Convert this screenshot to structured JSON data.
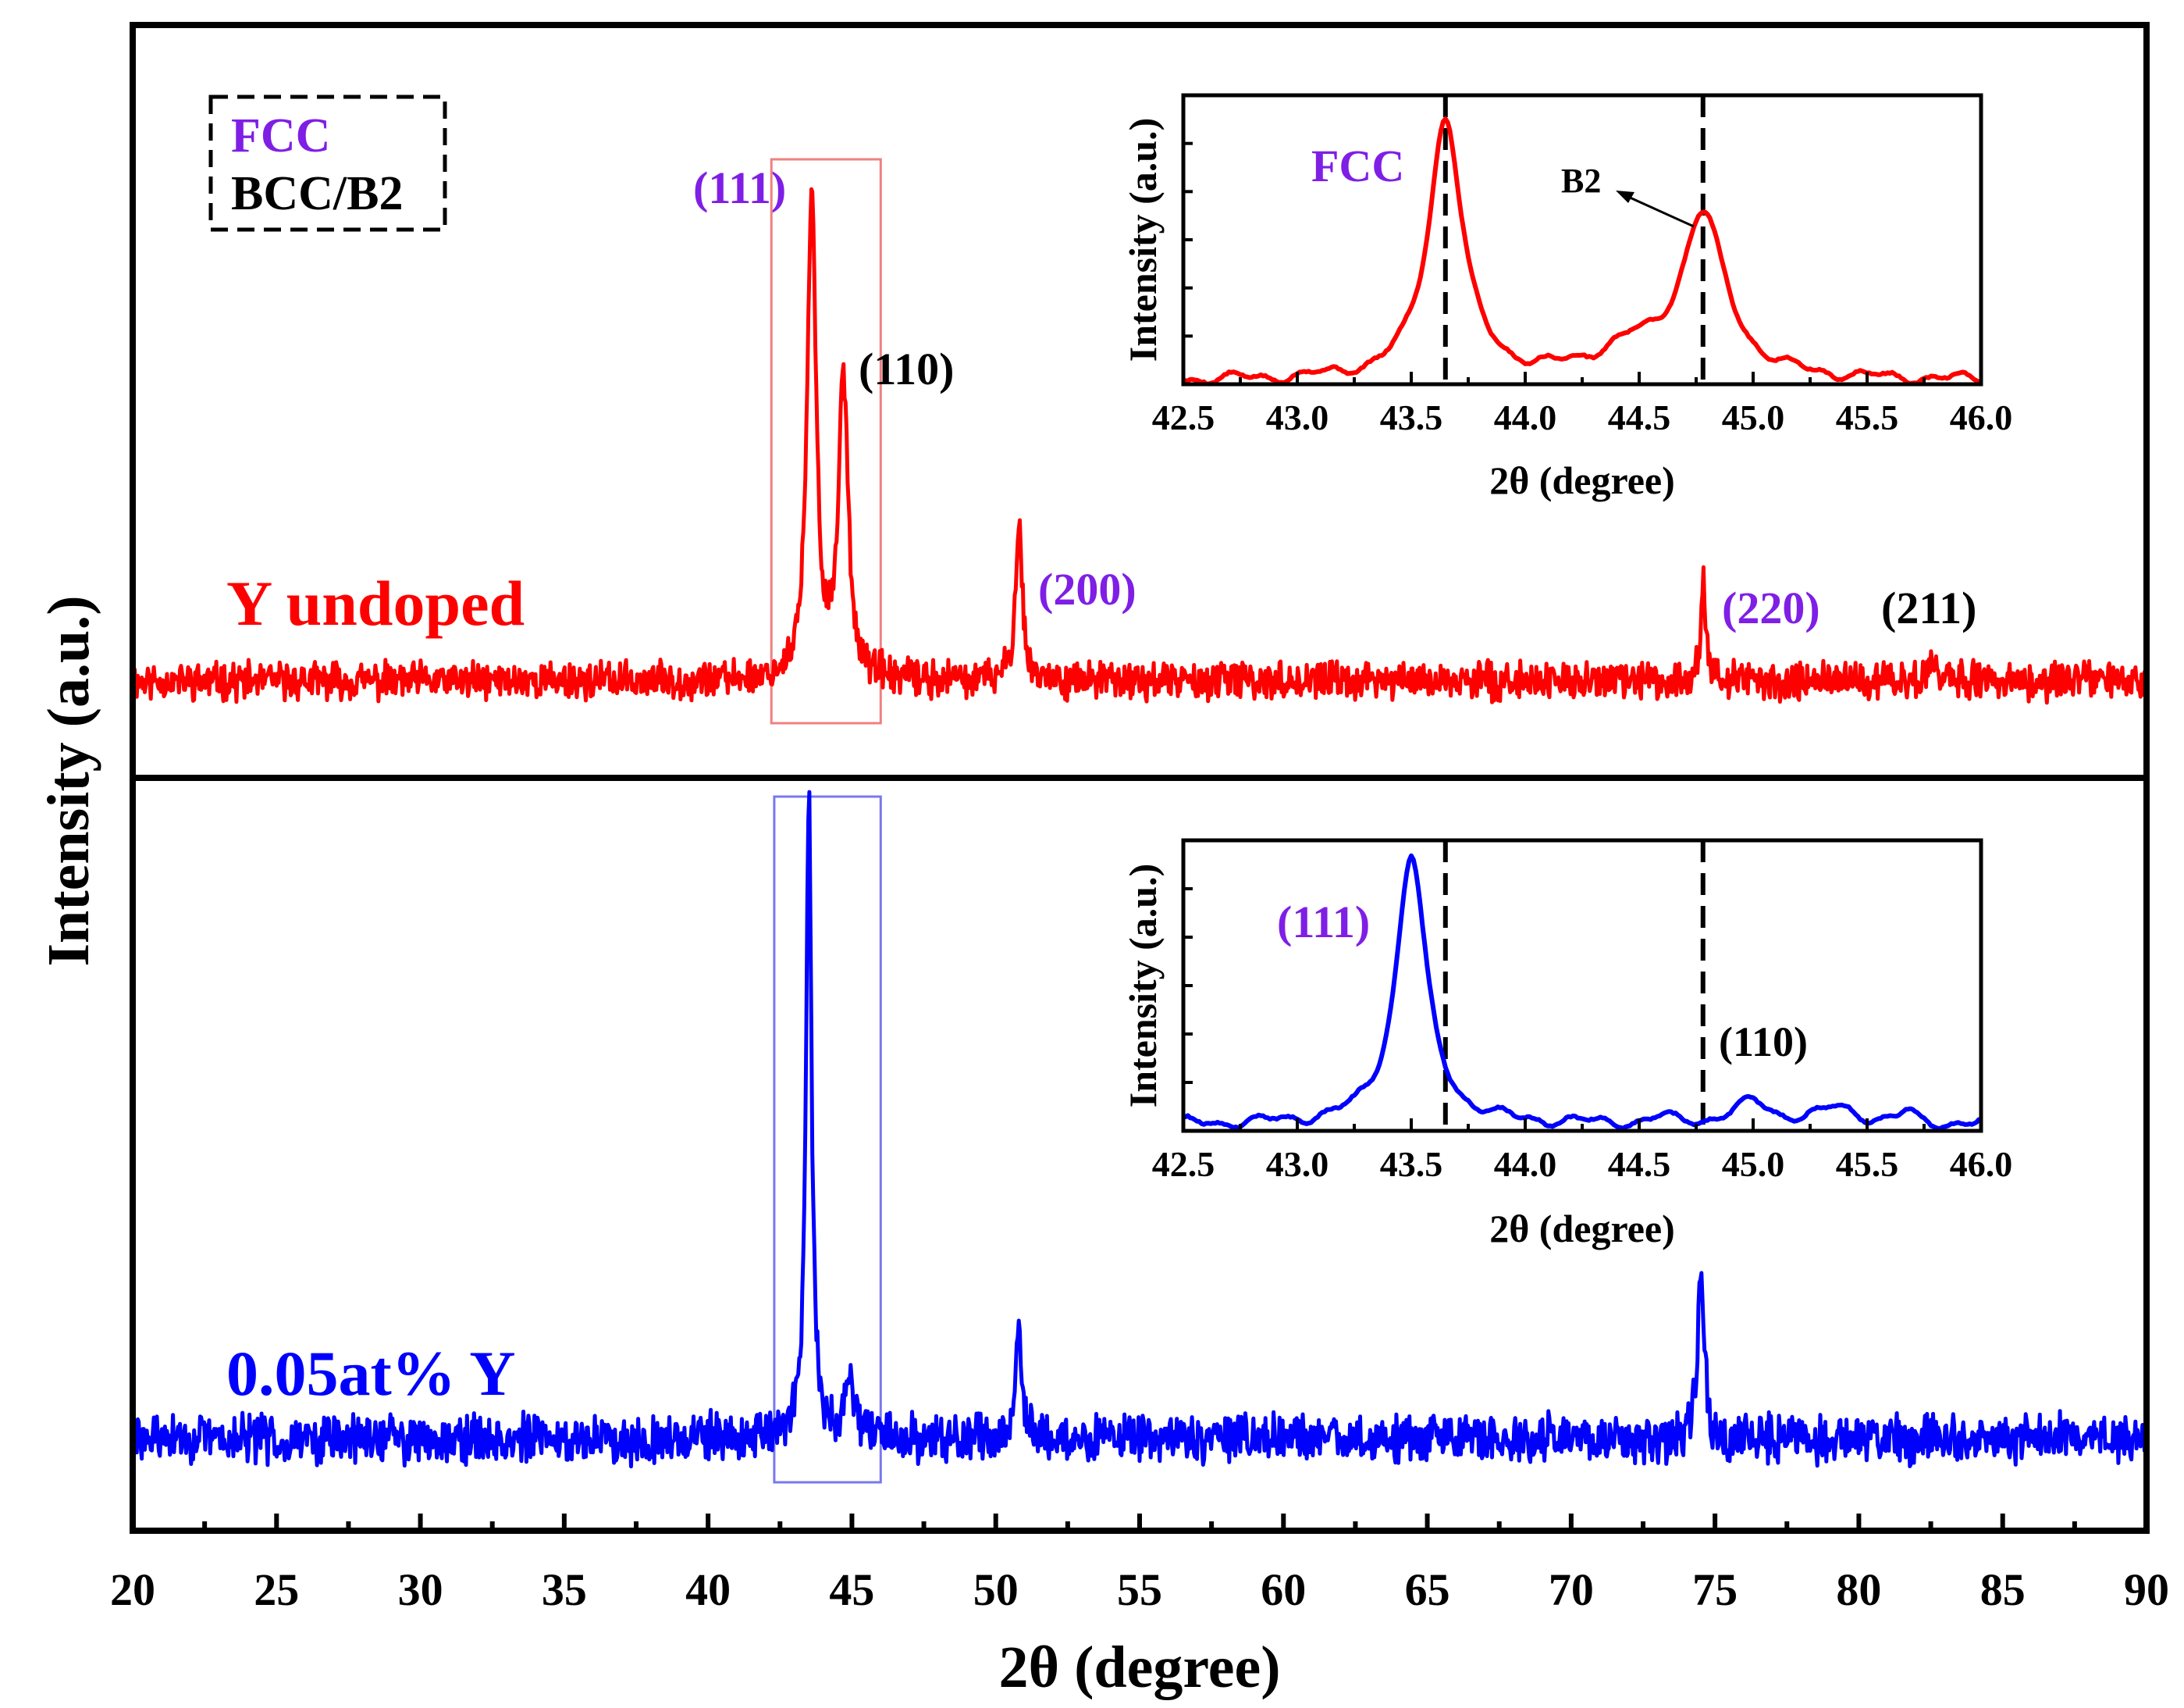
{
  "colors": {
    "red": "#ff0000",
    "blue": "#0000ff",
    "purple": "#7f1fe6",
    "black": "#000000",
    "box_red": "#f08080",
    "box_blue": "#7878f0"
  },
  "chart_data": [
    {
      "id": "main",
      "type": "line",
      "xlabel": "2θ (degree)",
      "ylabel": "Intensity (a.u.)",
      "xlim": [
        20,
        90
      ],
      "x_ticks": [
        20,
        25,
        30,
        35,
        40,
        45,
        50,
        55,
        60,
        65,
        70,
        75,
        80,
        85,
        90
      ],
      "legend": {
        "position": "top-left",
        "entries": [
          {
            "label": "FCC",
            "color": "#7f1fe6"
          },
          {
            "label": "BCC/B2",
            "color": "#000000"
          }
        ]
      },
      "panels": [
        {
          "name": "Y undoped",
          "color": "#ff0000",
          "baseline": 0.12,
          "peaks": [
            {
              "x": 43.6,
              "height": 1.0,
              "width": 0.18
            },
            {
              "x": 44.7,
              "height": 0.62,
              "width": 0.2
            },
            {
              "x": 50.8,
              "height": 0.33,
              "width": 0.14
            },
            {
              "x": 74.6,
              "height": 0.2,
              "width": 0.12
            },
            {
              "x": 82.6,
              "height": 0.06,
              "width": 0.15
            }
          ],
          "peak_labels": [
            {
              "text": "(111)",
              "x": 41.4,
              "color": "#7f1fe6"
            },
            {
              "text": "(110)",
              "x": 47.0,
              "color": "#000000"
            },
            {
              "text": "(200)",
              "x": 53.4,
              "color": "#7f1fe6"
            },
            {
              "text": "(220)",
              "x": 77.2,
              "color": "#7f1fe6"
            },
            {
              "text": "(211)",
              "x": 84.5,
              "color": "#000000"
            }
          ],
          "highlight_box": [
            42.2,
            46.0
          ]
        },
        {
          "name": "0.05at% Y",
          "color": "#0000ff",
          "baseline": 0.07,
          "peaks": [
            {
              "x": 43.5,
              "height": 1.0,
              "width": 0.12
            },
            {
              "x": 44.9,
              "height": 0.09,
              "width": 0.2
            },
            {
              "x": 50.8,
              "height": 0.18,
              "width": 0.12
            },
            {
              "x": 74.5,
              "height": 0.28,
              "width": 0.13
            }
          ],
          "peak_labels": [],
          "highlight_box": [
            42.3,
            46.0
          ]
        }
      ]
    },
    {
      "id": "inset-top",
      "type": "line",
      "xlabel": "2θ (degree)",
      "ylabel": "Intensity (a.u.)",
      "xlim": [
        42.5,
        46.0
      ],
      "x_ticks": [
        42.5,
        43.0,
        43.5,
        44.0,
        44.5,
        45.0,
        45.5,
        46.0
      ],
      "color": "#ff0000",
      "reference_lines": [
        43.65,
        44.78
      ],
      "peaks": [
        {
          "x": 43.65,
          "height": 1.0,
          "width": 0.09
        },
        {
          "x": 44.78,
          "height": 0.62,
          "width": 0.12
        },
        {
          "x": 44.45,
          "height": 0.1,
          "width": 0.18
        }
      ],
      "labels": [
        {
          "text": "FCC",
          "color": "#7f1fe6"
        },
        {
          "text": "B2",
          "color": "#000000"
        }
      ]
    },
    {
      "id": "inset-bottom",
      "type": "line",
      "xlabel": "2θ (degree)",
      "ylabel": "Intensity (a.u.)",
      "xlim": [
        42.5,
        46.0
      ],
      "x_ticks": [
        42.5,
        43.0,
        43.5,
        44.0,
        44.5,
        45.0,
        45.5,
        46.0
      ],
      "color": "#0000ff",
      "reference_lines": [
        43.65,
        44.78
      ],
      "peaks": [
        {
          "x": 43.5,
          "height": 1.0,
          "width": 0.08
        },
        {
          "x": 45.0,
          "height": 0.08,
          "width": 0.1
        },
        {
          "x": 45.38,
          "height": 0.06,
          "width": 0.1
        },
        {
          "x": 45.68,
          "height": 0.04,
          "width": 0.04
        },
        {
          "x": 44.6,
          "height": 0.02,
          "width": 0.05
        }
      ],
      "labels": [
        {
          "text": "(111)",
          "color": "#7f1fe6"
        },
        {
          "text": "(110)",
          "color": "#000000"
        }
      ]
    }
  ]
}
